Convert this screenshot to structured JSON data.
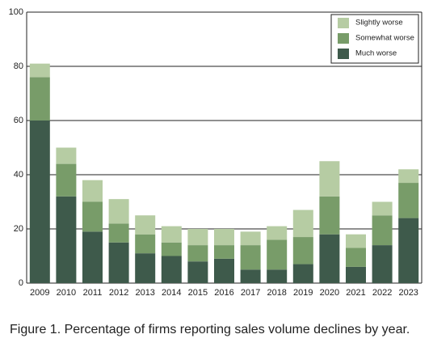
{
  "chart_data": {
    "type": "stacked-bar",
    "caption": "Figure 1. Percentage of firms reporting sales volume declines by year.",
    "categories": [
      "2009",
      "2010",
      "2011",
      "2012",
      "2013",
      "2014",
      "2015",
      "2016",
      "2017",
      "2018",
      "2019",
      "2020",
      "2021",
      "2022",
      "2023"
    ],
    "series": [
      {
        "name": "Much worse",
        "color": "#3e5a4b",
        "values": [
          60,
          32,
          19,
          15,
          11,
          10,
          8,
          9,
          5,
          5,
          7,
          18,
          6,
          14,
          24
        ]
      },
      {
        "name": "Somewhat worse",
        "color": "#789c69",
        "values": [
          16,
          12,
          11,
          7,
          7,
          5,
          6,
          5,
          9,
          11,
          10,
          14,
          7,
          11,
          13
        ]
      },
      {
        "name": "Slightly worse",
        "color": "#b6cca3",
        "values": [
          5,
          6,
          8,
          9,
          7,
          6,
          6,
          6,
          5,
          5,
          10,
          13,
          5,
          5,
          5
        ]
      }
    ],
    "ylim": [
      0,
      100
    ],
    "yticks": [
      0,
      20,
      40,
      60,
      80,
      100
    ],
    "grid": true,
    "legend": "top-right"
  }
}
